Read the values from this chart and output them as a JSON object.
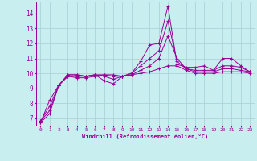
{
  "xlabel": "Windchill (Refroidissement éolien,°C)",
  "bg_color": "#c8eef0",
  "grid_color": "#aad4d8",
  "line_color": "#990099",
  "x_data": [
    0,
    1,
    2,
    3,
    4,
    5,
    6,
    7,
    8,
    9,
    10,
    11,
    12,
    13,
    14,
    15,
    16,
    17,
    18,
    19,
    20,
    21,
    22,
    23
  ],
  "series1": [
    6.7,
    7.3,
    9.2,
    9.9,
    9.9,
    9.8,
    9.9,
    9.5,
    9.3,
    9.8,
    10.0,
    10.8,
    11.9,
    12.0,
    14.5,
    10.6,
    10.4,
    10.4,
    10.5,
    10.2,
    11.0,
    11.0,
    10.5,
    10.1
  ],
  "series2": [
    6.8,
    7.5,
    9.2,
    9.9,
    9.9,
    9.8,
    9.9,
    9.8,
    9.6,
    9.8,
    10.0,
    10.5,
    11.0,
    11.5,
    13.5,
    10.8,
    10.3,
    10.2,
    10.2,
    10.2,
    10.5,
    10.5,
    10.4,
    10.1
  ],
  "series3": [
    6.8,
    7.8,
    9.2,
    9.8,
    9.8,
    9.8,
    9.9,
    9.9,
    9.8,
    9.8,
    9.9,
    10.2,
    10.5,
    11.0,
    12.5,
    11.0,
    10.3,
    10.1,
    10.1,
    10.1,
    10.3,
    10.3,
    10.2,
    10.1
  ],
  "series4": [
    6.7,
    8.2,
    9.2,
    9.8,
    9.7,
    9.7,
    9.8,
    9.9,
    9.9,
    9.8,
    9.9,
    10.0,
    10.1,
    10.3,
    10.5,
    10.5,
    10.2,
    10.0,
    10.0,
    10.0,
    10.1,
    10.1,
    10.1,
    10.0
  ],
  "ylim_min": 6.5,
  "ylim_max": 14.8,
  "yticks": [
    7,
    8,
    9,
    10,
    11,
    12,
    13,
    14
  ]
}
